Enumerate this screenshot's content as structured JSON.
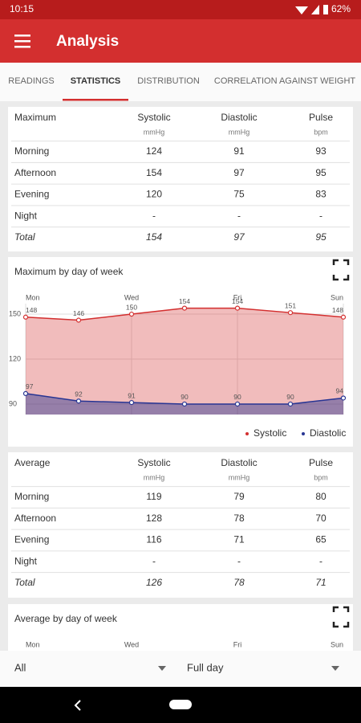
{
  "status_bar": {
    "time": "10:15",
    "battery": "62%"
  },
  "app_bar": {
    "title": "Analysis"
  },
  "tabs": [
    "READINGS",
    "STATISTICS",
    "DISTRIBUTION",
    "CORRELATION AGAINST WEIGHT"
  ],
  "active_tab": 1,
  "maximum_table": {
    "header": [
      "Maximum",
      "Systolic",
      "Diastolic",
      "Pulse"
    ],
    "units": [
      "mmHg",
      "mmHg",
      "bpm"
    ],
    "rows": [
      [
        "Morning",
        124,
        91,
        93
      ],
      [
        "Afternoon",
        154,
        97,
        95
      ],
      [
        "Evening",
        120,
        75,
        83
      ],
      [
        "Night",
        "-",
        "-",
        "-"
      ],
      [
        "Total",
        154,
        97,
        95
      ]
    ]
  },
  "average_table": {
    "header": [
      "Average",
      "Systolic",
      "Diastolic",
      "Pulse"
    ],
    "units": [
      "mmHg",
      "mmHg",
      "bpm"
    ],
    "rows": [
      [
        "Morning",
        119,
        79,
        80
      ],
      [
        "Afternoon",
        128,
        78,
        70
      ],
      [
        "Evening",
        116,
        71,
        65
      ],
      [
        "Night",
        "-",
        "-",
        "-"
      ],
      [
        "Total",
        126,
        78,
        71
      ]
    ]
  },
  "chart_data": [
    {
      "type": "area",
      "title": "Maximum by day of week",
      "categories": [
        "Mon",
        null,
        "Wed",
        null,
        "Fri",
        null,
        "Sun"
      ],
      "series": [
        {
          "name": "Systolic",
          "color": "#d32f2f",
          "values": [
            148,
            146,
            150,
            154,
            154,
            151,
            148
          ]
        },
        {
          "name": "Diastolic",
          "color": "#283593",
          "values": [
            97,
            92,
            91,
            90,
            90,
            90,
            94
          ]
        }
      ],
      "ylim": [
        83,
        157
      ],
      "yticks": [
        90,
        120,
        150
      ],
      "grid": true
    },
    {
      "type": "area",
      "title": "Average by day of week",
      "categories": [
        "Mon",
        null,
        "Wed",
        null,
        "Fri",
        null,
        "Sun"
      ]
    }
  ],
  "filters": [
    "All",
    "Full day"
  ]
}
